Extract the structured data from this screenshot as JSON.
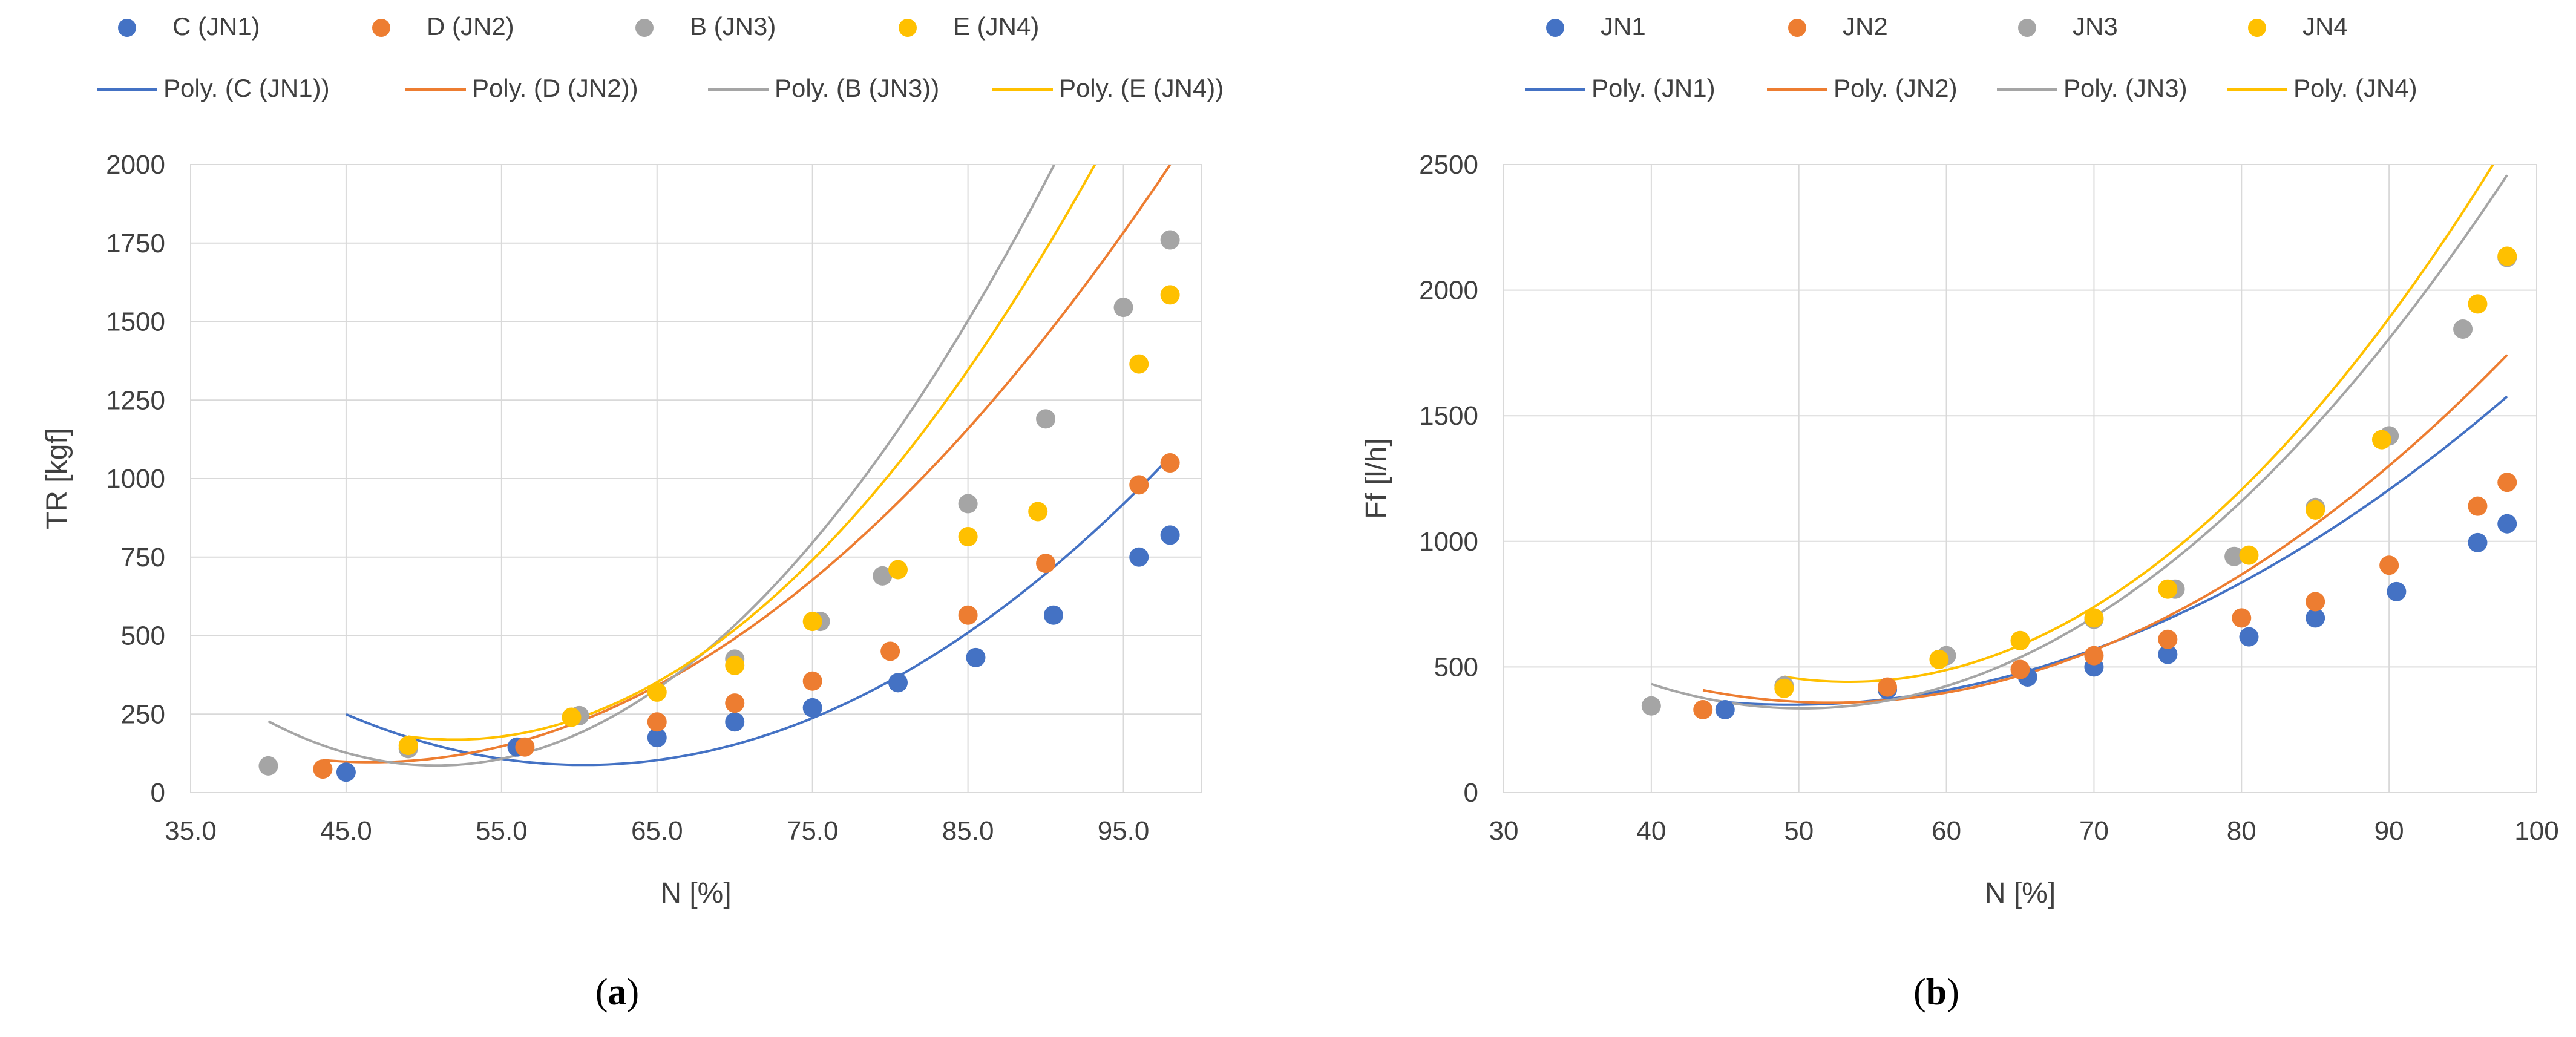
{
  "colors": {
    "JN1": "#4472C4",
    "JN2": "#ED7D31",
    "JN3": "#A5A5A5",
    "JN4": "#FFC000",
    "grid": "#d9d9d9",
    "text": "#404040"
  },
  "chart_data": [
    {
      "type": "scatter",
      "panel": "a",
      "caption": "a",
      "xlabel": "N [%]",
      "ylabel": "TR [kgf]",
      "xlim": [
        35,
        100
      ],
      "ylim": [
        0,
        2000
      ],
      "xticks": [
        "35.0",
        "45.0",
        "55.0",
        "65.0",
        "75.0",
        "85.0",
        "95.0"
      ],
      "xtick_values": [
        35,
        45,
        55,
        65,
        75,
        85,
        95
      ],
      "yticks": [
        "0",
        "250",
        "500",
        "750",
        "1000",
        "1250",
        "1500",
        "1750",
        "2000"
      ],
      "ytick_values": [
        0,
        250,
        500,
        750,
        1000,
        1250,
        1500,
        1750,
        2000
      ],
      "grid": true,
      "legend_position": "top",
      "series": [
        {
          "name": "C (JN1)",
          "trend_name": "Poly. (C (JN1))",
          "key": "JN1",
          "x": [
            45.0,
            56.0,
            65.0,
            70.0,
            75.0,
            80.5,
            85.5,
            90.5,
            96.0,
            98.0
          ],
          "y": [
            65,
            145,
            175,
            225,
            270,
            350,
            430,
            565,
            750,
            820
          ],
          "trend": {
            "x_range": [
              45.0,
              98.0
            ],
            "coeffs": [
              0.69,
              -83.2,
              2596
            ]
          }
        },
        {
          "name": "D (JN2)",
          "trend_name": "Poly. (D (JN2))",
          "key": "JN2",
          "x": [
            43.5,
            56.5,
            65.0,
            70.0,
            75.0,
            80.0,
            85.0,
            90.0,
            96.0,
            98.0
          ],
          "y": [
            75,
            145,
            225,
            285,
            355,
            450,
            565,
            730,
            980,
            1050
          ],
          "trend": {
            "x_range": [
              43.5,
              98.0
            ],
            "coeffs": [
              0.72,
              -67.1,
              1660
            ]
          }
        },
        {
          "name": "B (JN3)",
          "trend_name": "Poly. (B (JN3))",
          "key": "JN3",
          "x": [
            40.0,
            49.0,
            60.0,
            70.0,
            75.5,
            79.5,
            85.0,
            90.0,
            95.0,
            98.0
          ],
          "y": [
            85,
            140,
            245,
            425,
            545,
            690,
            920,
            1190,
            1545,
            1760
          ],
          "trend": {
            "x_range": [
              40.0,
              98.0
            ],
            "coeffs": [
              1.21,
              -122.9,
              3207
            ]
          }
        },
        {
          "name": "E (JN4)",
          "trend_name": "Poly. (E (JN4))",
          "key": "JN4",
          "x": [
            49.0,
            59.5,
            65.0,
            70.0,
            75.0,
            80.5,
            85.0,
            89.5,
            96.0,
            98.0
          ],
          "y": [
            150,
            240,
            320,
            405,
            545,
            710,
            815,
            895,
            1365,
            1585
          ],
          "trend": {
            "x_range": [
              49.0,
              98.0
            ],
            "coeffs": [
              1.08,
              -112.3,
              3088
            ]
          }
        }
      ]
    },
    {
      "type": "scatter",
      "panel": "b",
      "caption": "b",
      "xlabel": "N [%]",
      "ylabel": "Ff [l/h]",
      "xlim": [
        30,
        100
      ],
      "ylim": [
        0,
        2500
      ],
      "xticks": [
        "30",
        "40",
        "50",
        "60",
        "70",
        "80",
        "90",
        "100"
      ],
      "xtick_values": [
        30,
        40,
        50,
        60,
        70,
        80,
        90,
        100
      ],
      "yticks": [
        "0",
        "500",
        "1000",
        "1500",
        "2000",
        "2500"
      ],
      "ytick_values": [
        0,
        500,
        1000,
        1500,
        2000,
        2500
      ],
      "grid": true,
      "legend_position": "top",
      "series": [
        {
          "name": "JN1",
          "trend_name": "Poly. (JN1)",
          "key": "JN1",
          "x": [
            45.0,
            56.0,
            65.5,
            70.0,
            75.0,
            80.5,
            85.0,
            90.5,
            96.0,
            98.0
          ],
          "y": [
            330,
            410,
            460,
            500,
            550,
            620,
            695,
            800,
            995,
            1070
          ],
          "trend": {
            "x_range": [
              45.0,
              98.0
            ],
            "coeffs": [
              0.52,
              -51.4,
              1620
            ]
          }
        },
        {
          "name": "JN2",
          "trend_name": "Poly. (JN2)",
          "key": "JN2",
          "x": [
            43.5,
            56.0,
            65.0,
            70.0,
            75.0,
            80.0,
            85.0,
            90.0,
            96.0,
            98.0
          ],
          "y": [
            330,
            420,
            490,
            545,
            610,
            695,
            760,
            905,
            1140,
            1235
          ],
          "trend": {
            "x_range": [
              43.5,
              98.0
            ],
            "coeffs": [
              0.66,
              -68.9,
              2156
            ]
          }
        },
        {
          "name": "JN3",
          "trend_name": "Poly. (JN3)",
          "key": "JN3",
          "x": [
            40.0,
            49.0,
            60.0,
            70.0,
            75.5,
            79.5,
            85.0,
            90.0,
            95.0,
            98.0
          ],
          "y": [
            345,
            425,
            545,
            690,
            810,
            940,
            1135,
            1420,
            1845,
            2130
          ],
          "trend": {
            "x_range": [
              40.0,
              98.0
            ],
            "coeffs": [
              0.93,
              -93.4,
              2680
            ]
          }
        },
        {
          "name": "JN4",
          "trend_name": "Poly. (JN4)",
          "key": "JN4",
          "x": [
            49.0,
            59.5,
            65.0,
            70.0,
            75.0,
            80.5,
            85.0,
            89.5,
            96.0,
            98.0
          ],
          "y": [
            415,
            530,
            605,
            695,
            810,
            945,
            1125,
            1405,
            1945,
            2135
          ],
          "trend": {
            "x_range": [
              49.0,
              98.0
            ],
            "coeffs": [
              1.08,
              -115.3,
              3518
            ]
          }
        }
      ]
    }
  ]
}
